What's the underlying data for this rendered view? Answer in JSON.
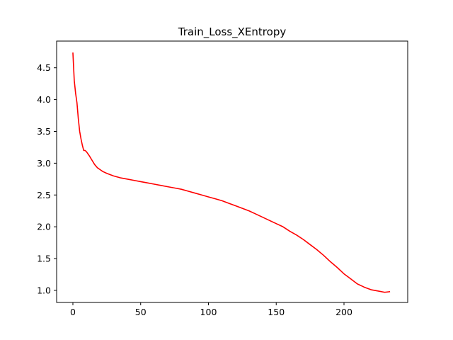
{
  "chart_data": {
    "type": "line",
    "title": "Train_Loss_XEntropy",
    "xlabel": "",
    "ylabel": "",
    "xlim": [
      -12,
      247
    ],
    "ylim": [
      0.81,
      4.92
    ],
    "xticks": [
      0,
      50,
      100,
      150,
      200
    ],
    "yticks": [
      1.0,
      1.5,
      2.0,
      2.5,
      3.0,
      3.5,
      4.0,
      4.5
    ],
    "grid": false,
    "series": [
      {
        "color": "#ff0000",
        "x": [
          0,
          1,
          2,
          3,
          4,
          5,
          6,
          7,
          8,
          9,
          10,
          12,
          14,
          16,
          18,
          20,
          22,
          25,
          30,
          35,
          40,
          45,
          50,
          55,
          60,
          65,
          70,
          75,
          80,
          85,
          90,
          95,
          100,
          105,
          110,
          115,
          120,
          125,
          130,
          135,
          140,
          145,
          150,
          155,
          160,
          165,
          170,
          175,
          180,
          185,
          190,
          195,
          200,
          205,
          210,
          215,
          220,
          225,
          230,
          234
        ],
        "y": [
          4.74,
          4.3,
          4.1,
          3.95,
          3.7,
          3.5,
          3.38,
          3.28,
          3.2,
          3.2,
          3.18,
          3.12,
          3.05,
          2.98,
          2.93,
          2.9,
          2.87,
          2.84,
          2.8,
          2.77,
          2.75,
          2.73,
          2.71,
          2.69,
          2.67,
          2.65,
          2.63,
          2.61,
          2.59,
          2.56,
          2.53,
          2.5,
          2.47,
          2.44,
          2.41,
          2.37,
          2.33,
          2.29,
          2.25,
          2.2,
          2.15,
          2.1,
          2.05,
          2.0,
          1.93,
          1.87,
          1.8,
          1.72,
          1.64,
          1.55,
          1.45,
          1.36,
          1.26,
          1.18,
          1.1,
          1.05,
          1.01,
          0.99,
          0.97,
          0.98
        ]
      }
    ]
  }
}
